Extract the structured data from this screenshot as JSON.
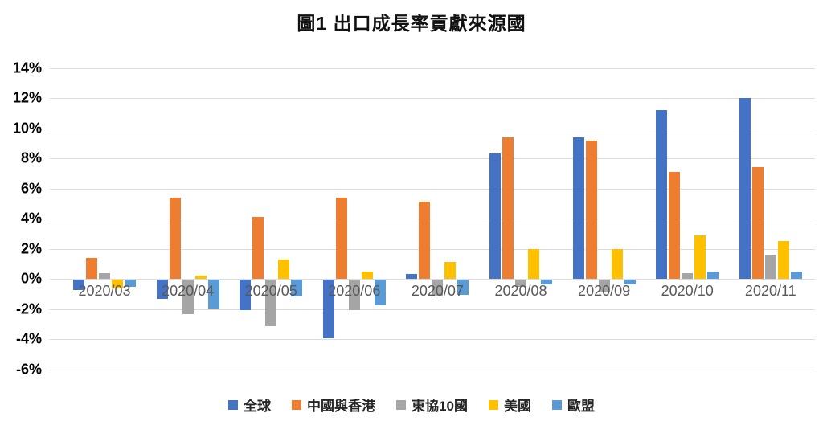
{
  "chart_data": {
    "type": "bar",
    "title": "圖1  出口成長率貢獻來源國",
    "categories": [
      "2020/03",
      "2020/04",
      "2020/05",
      "2020/06",
      "2020/07",
      "2020/08",
      "2020/09",
      "2020/10",
      "2020/11"
    ],
    "series": [
      {
        "name": "全球",
        "color": "#4472C4",
        "values": [
          -0.7,
          -1.3,
          -2.0,
          -3.9,
          0.3,
          8.3,
          9.4,
          11.2,
          12.0
        ]
      },
      {
        "name": "中國與香港",
        "color": "#ED7D31",
        "values": [
          1.4,
          5.4,
          4.1,
          5.4,
          5.1,
          9.4,
          9.2,
          7.1,
          7.4
        ]
      },
      {
        "name": "東協10國",
        "color": "#A5A5A5",
        "values": [
          0.4,
          -2.3,
          -3.1,
          -2.0,
          -1.1,
          -0.5,
          -0.8,
          0.4,
          1.6
        ]
      },
      {
        "name": "美國",
        "color": "#FFC000",
        "values": [
          -0.6,
          0.2,
          1.3,
          0.5,
          1.1,
          2.0,
          2.0,
          2.9,
          2.5
        ]
      },
      {
        "name": "歐盟",
        "color": "#5B9BD5",
        "values": [
          -0.5,
          -1.9,
          -1.1,
          -1.7,
          -1.0,
          -0.3,
          -0.3,
          0.5,
          0.5
        ]
      }
    ],
    "y_axis": {
      "min": -6,
      "max": 14,
      "step": 2,
      "suffix": "%"
    },
    "grid": true,
    "legend_position": "bottom",
    "xlabel": "",
    "ylabel": ""
  }
}
